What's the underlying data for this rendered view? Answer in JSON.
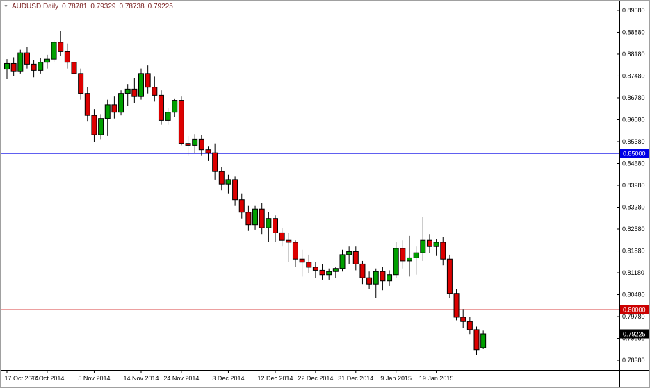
{
  "header": {
    "symbol": "AUDUSD,Daily",
    "open": "0.78781",
    "high": "0.79329",
    "low": "0.78738",
    "close": "0.79225"
  },
  "chart_data": {
    "type": "candlestick",
    "symbol": "AUDUSD",
    "timeframe": "Daily",
    "title": "AUDUSD Daily candlestick chart",
    "ylim": [
      0.7807,
      0.8989
    ],
    "y_ticks": [
      "0.89580",
      "0.88880",
      "0.88180",
      "0.87480",
      "0.86780",
      "0.86080",
      "0.85380",
      "0.84680",
      "0.83980",
      "0.83280",
      "0.82580",
      "0.81880",
      "0.81180",
      "0.80480",
      "0.79780",
      "0.79080",
      "0.78380"
    ],
    "x_ticks": [
      {
        "index": 0,
        "label": "17 Oct 2014"
      },
      {
        "index": 6,
        "label": "27 Oct 2014"
      },
      {
        "index": 13,
        "label": "5 Nov 2014"
      },
      {
        "index": 20,
        "label": "14 Nov 2014"
      },
      {
        "index": 26,
        "label": "24 Nov 2014"
      },
      {
        "index": 33,
        "label": "3 Dec 2014"
      },
      {
        "index": 40,
        "label": "12 Dec 2014"
      },
      {
        "index": 46,
        "label": "22 Dec 2014"
      },
      {
        "index": 52,
        "label": "31 Dec 2014"
      },
      {
        "index": 58,
        "label": "9 Jan 2015"
      },
      {
        "index": 64,
        "label": "19 Jan 2015"
      }
    ],
    "candles": [
      [
        0.877,
        0.8802,
        0.8738,
        0.8788
      ],
      [
        0.8788,
        0.8808,
        0.8748,
        0.8762
      ],
      [
        0.8762,
        0.8832,
        0.8756,
        0.8822
      ],
      [
        0.8822,
        0.8842,
        0.8772,
        0.8786
      ],
      [
        0.8786,
        0.8798,
        0.8744,
        0.8766
      ],
      [
        0.8766,
        0.8806,
        0.8756,
        0.8792
      ],
      [
        0.8792,
        0.8816,
        0.8772,
        0.8802
      ],
      [
        0.8802,
        0.8862,
        0.8792,
        0.8856
      ],
      [
        0.8856,
        0.8892,
        0.8812,
        0.8826
      ],
      [
        0.8826,
        0.8852,
        0.8772,
        0.8792
      ],
      [
        0.8792,
        0.8812,
        0.8742,
        0.8756
      ],
      [
        0.8756,
        0.8772,
        0.8672,
        0.8692
      ],
      [
        0.8692,
        0.8712,
        0.8602,
        0.8622
      ],
      [
        0.8622,
        0.8642,
        0.8538,
        0.856
      ],
      [
        0.856,
        0.8626,
        0.8546,
        0.8612
      ],
      [
        0.8612,
        0.8672,
        0.8556,
        0.8656
      ],
      [
        0.8656,
        0.8682,
        0.8612,
        0.8632
      ],
      [
        0.8632,
        0.8702,
        0.8622,
        0.8692
      ],
      [
        0.8692,
        0.8722,
        0.8652,
        0.8706
      ],
      [
        0.8706,
        0.8742,
        0.8662,
        0.8682
      ],
      [
        0.8682,
        0.8772,
        0.8672,
        0.8756
      ],
      [
        0.8756,
        0.8782,
        0.8692,
        0.8712
      ],
      [
        0.8712,
        0.8746,
        0.8666,
        0.8686
      ],
      [
        0.8686,
        0.8702,
        0.8592,
        0.8606
      ],
      [
        0.8606,
        0.8646,
        0.8592,
        0.8632
      ],
      [
        0.8632,
        0.8676,
        0.8616,
        0.867
      ],
      [
        0.867,
        0.8682,
        0.8526,
        0.8532
      ],
      [
        0.8532,
        0.8556,
        0.8492,
        0.8526
      ],
      [
        0.8526,
        0.8562,
        0.8502,
        0.8546
      ],
      [
        0.8546,
        0.856,
        0.8492,
        0.8512
      ],
      [
        0.8512,
        0.8522,
        0.8476,
        0.8502
      ],
      [
        0.8502,
        0.8532,
        0.8416,
        0.8442
      ],
      [
        0.8442,
        0.8456,
        0.8382,
        0.8402
      ],
      [
        0.8402,
        0.8432,
        0.8372,
        0.8416
      ],
      [
        0.8416,
        0.8426,
        0.8332,
        0.8352
      ],
      [
        0.8352,
        0.8372,
        0.8292,
        0.8312
      ],
      [
        0.8312,
        0.8332,
        0.8252,
        0.8272
      ],
      [
        0.8272,
        0.8332,
        0.8256,
        0.8322
      ],
      [
        0.8322,
        0.8342,
        0.8242,
        0.8262
      ],
      [
        0.8262,
        0.8312,
        0.8216,
        0.8292
      ],
      [
        0.8292,
        0.8302,
        0.8216,
        0.8246
      ],
      [
        0.8246,
        0.8262,
        0.8202,
        0.8222
      ],
      [
        0.8222,
        0.8246,
        0.8152,
        0.8216
      ],
      [
        0.8216,
        0.8222,
        0.8136,
        0.8162
      ],
      [
        0.8162,
        0.8192,
        0.8106,
        0.8152
      ],
      [
        0.8152,
        0.8176,
        0.8116,
        0.8136
      ],
      [
        0.8136,
        0.8152,
        0.8102,
        0.8126
      ],
      [
        0.8126,
        0.8146,
        0.8096,
        0.8112
      ],
      [
        0.8112,
        0.8132,
        0.8096,
        0.8122
      ],
      [
        0.8122,
        0.8136,
        0.8102,
        0.8132
      ],
      [
        0.8132,
        0.8192,
        0.8122,
        0.8176
      ],
      [
        0.8176,
        0.8202,
        0.8146,
        0.8186
      ],
      [
        0.8186,
        0.8202,
        0.8126,
        0.8146
      ],
      [
        0.8146,
        0.8156,
        0.8082,
        0.8102
      ],
      [
        0.8102,
        0.8122,
        0.8066,
        0.8082
      ],
      [
        0.8082,
        0.8132,
        0.8036,
        0.8122
      ],
      [
        0.8122,
        0.8136,
        0.8062,
        0.8092
      ],
      [
        0.8092,
        0.8126,
        0.8076,
        0.8112
      ],
      [
        0.8112,
        0.8216,
        0.8102,
        0.8196
      ],
      [
        0.8196,
        0.8222,
        0.8132,
        0.8156
      ],
      [
        0.8156,
        0.8236,
        0.8106,
        0.8166
      ],
      [
        0.8166,
        0.8202,
        0.8112,
        0.8182
      ],
      [
        0.8182,
        0.8296,
        0.8156,
        0.8222
      ],
      [
        0.8222,
        0.8242,
        0.8182,
        0.8202
      ],
      [
        0.8202,
        0.8226,
        0.8172,
        0.8216
      ],
      [
        0.8216,
        0.8232,
        0.8142,
        0.8162
      ],
      [
        0.8162,
        0.8176,
        0.8036,
        0.8052
      ],
      [
        0.8052,
        0.8066,
        0.7966,
        0.7976
      ],
      [
        0.7976,
        0.8002,
        0.7942,
        0.7962
      ],
      [
        0.7962,
        0.7976,
        0.7922,
        0.7936
      ],
      [
        0.7936,
        0.7946,
        0.7856,
        0.7872
      ],
      [
        0.78781,
        0.79329,
        0.78738,
        0.79225
      ]
    ],
    "hlines": [
      {
        "price": 0.85,
        "label": "0.85000",
        "color": "#0000E6"
      },
      {
        "price": 0.8,
        "label": "0.80000",
        "color": "#CC0000"
      }
    ],
    "current_price": {
      "price": 0.79225,
      "label": "0.79225",
      "color": "#000000"
    },
    "colors": {
      "bull": "#00A000",
      "bear": "#DD0000",
      "wick": "#000000",
      "outline": "#000000",
      "axis_text": "#000000",
      "background": "#FFFFFF",
      "header_text": "#7A2222"
    }
  }
}
